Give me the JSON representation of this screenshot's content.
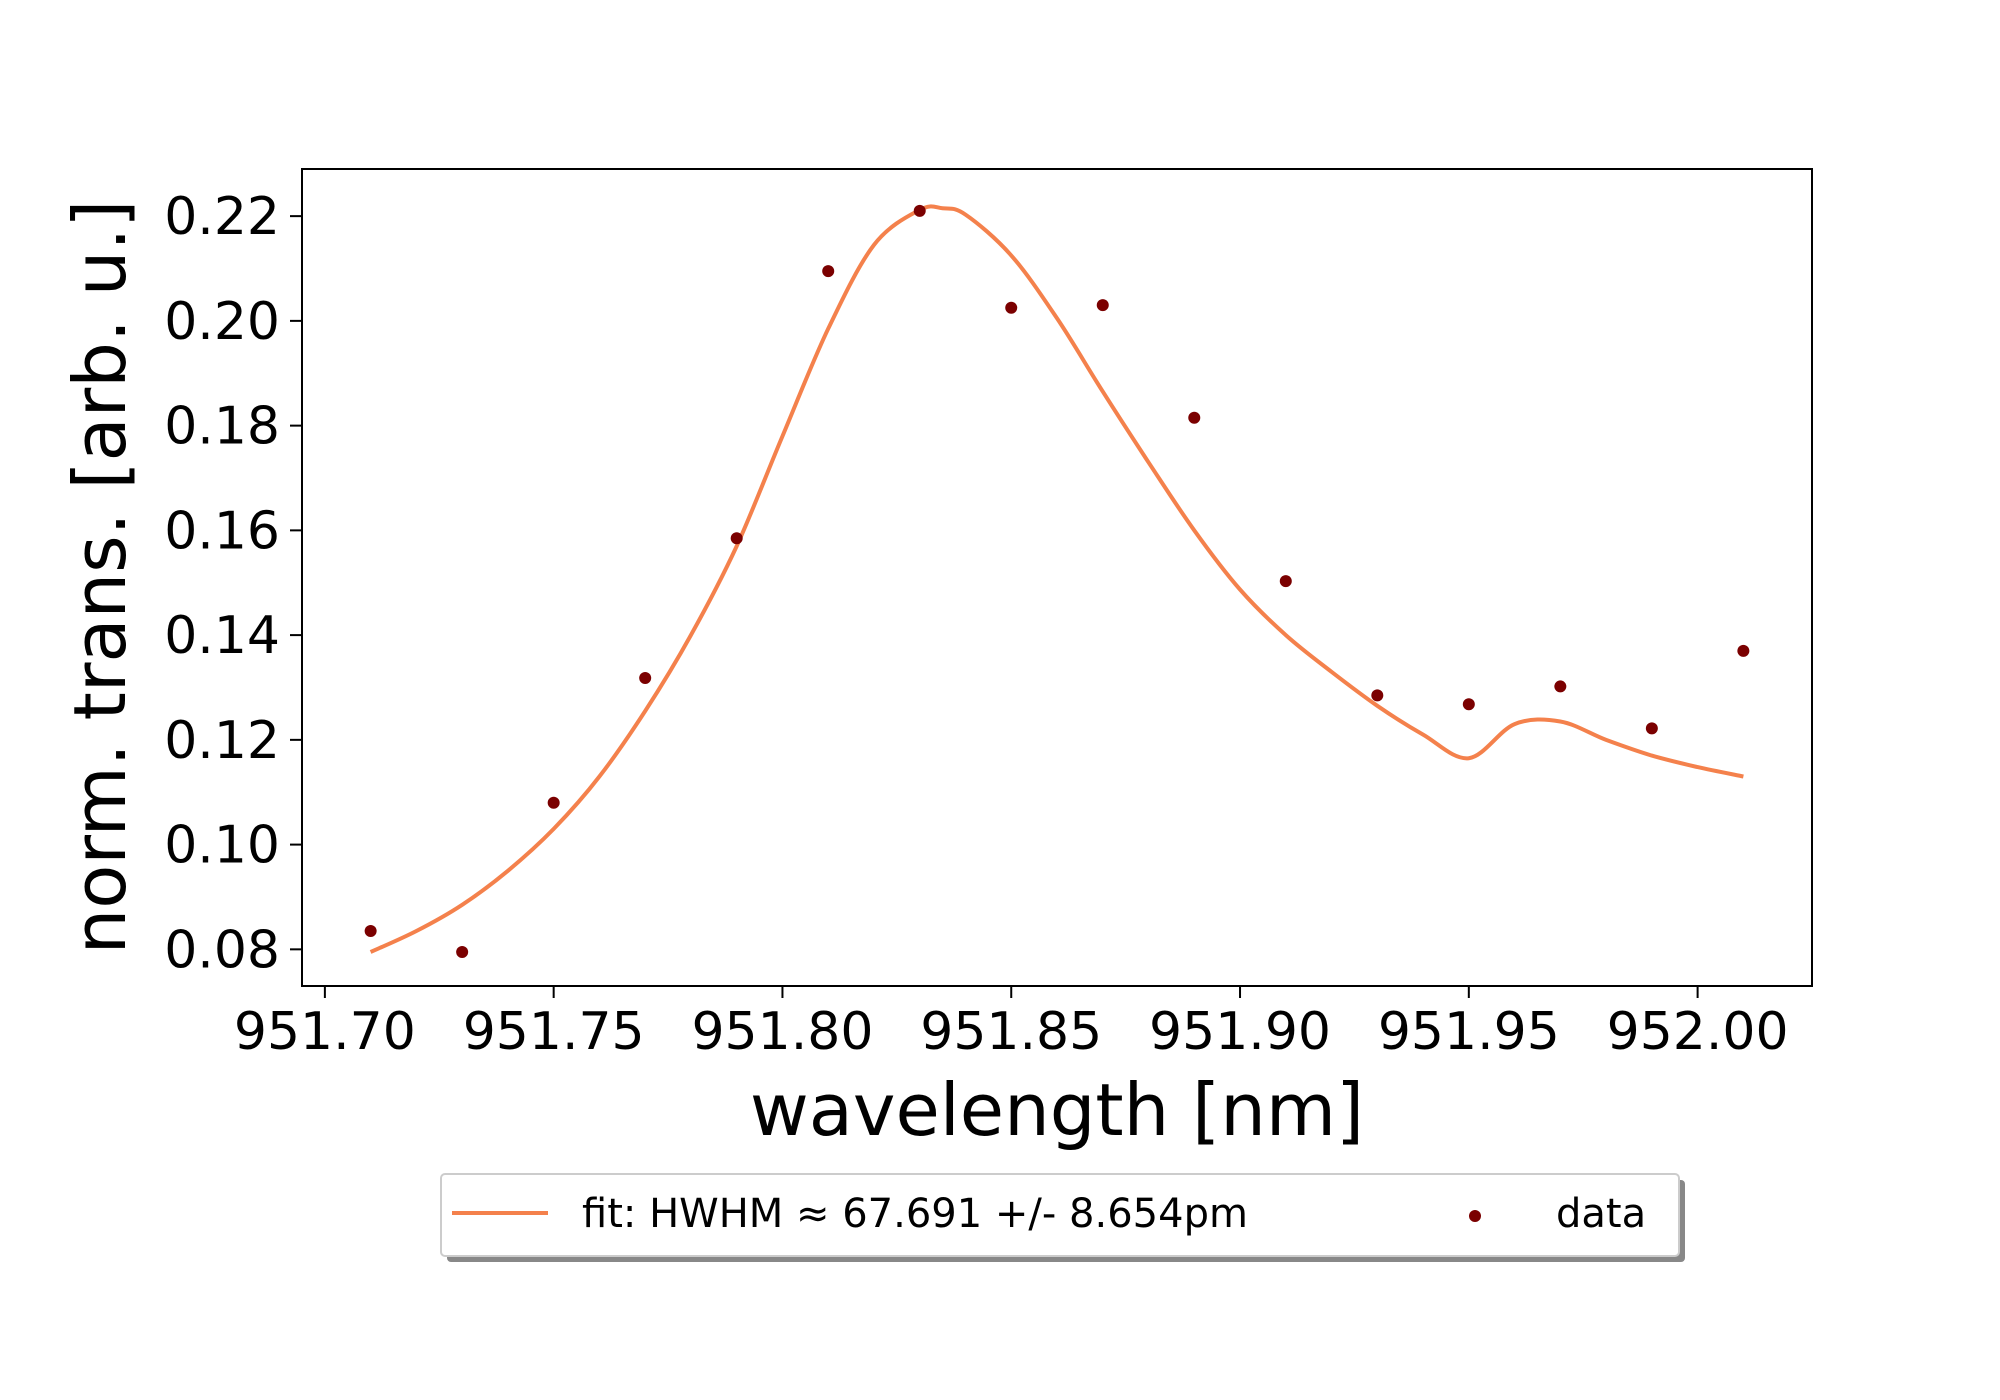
{
  "chart_data": {
    "type": "scatter",
    "title": "",
    "xlabel": "wavelength [nm]",
    "ylabel": "norm. trans. [arb. u.]",
    "xlim": [
      951.695,
      952.025
    ],
    "ylim": [
      0.073,
      0.229
    ],
    "x_ticks": [
      951.7,
      951.75,
      951.8,
      951.85,
      951.9,
      951.95,
      952.0
    ],
    "x_tick_labels": [
      "951.70",
      "951.75",
      "951.80",
      "951.85",
      "951.90",
      "951.95",
      "952.00"
    ],
    "y_ticks": [
      0.08,
      0.1,
      0.12,
      0.14,
      0.16,
      0.18,
      0.2,
      0.22
    ],
    "y_tick_labels": [
      "0.08",
      "0.10",
      "0.12",
      "0.14",
      "0.16",
      "0.18",
      "0.20",
      "0.22"
    ],
    "grid": false,
    "legend_position": "bottom-center, below plot",
    "series": [
      {
        "name": "fit: HWHM ≈ 67.691 +/- 8.654pm",
        "kind": "line",
        "color": "#f4814c",
        "x": [
          951.71,
          951.72,
          951.73,
          951.74,
          951.75,
          951.76,
          951.77,
          951.78,
          951.79,
          951.8,
          951.81,
          951.82,
          951.83,
          951.835,
          951.84,
          951.85,
          951.86,
          951.87,
          951.88,
          951.89,
          951.9,
          951.91,
          951.92,
          951.93,
          951.94,
          951.95,
          951.96,
          951.97,
          951.98,
          951.99,
          952.0,
          952.01
        ],
        "y": [
          0.0795,
          0.0835,
          0.0885,
          0.095,
          0.103,
          0.113,
          0.1255,
          0.14,
          0.157,
          0.178,
          0.1985,
          0.2145,
          0.2212,
          0.2215,
          0.2203,
          0.2125,
          0.2005,
          0.1865,
          0.173,
          0.16,
          0.1487,
          0.14,
          0.133,
          0.1265,
          0.121,
          0.1165,
          0.123,
          0.1235,
          0.12,
          0.117,
          0.1148,
          0.113
        ]
      },
      {
        "name": "data",
        "kind": "scatter",
        "color": "#7b0000",
        "x": [
          951.71,
          951.73,
          951.75,
          951.77,
          951.79,
          951.81,
          951.83,
          951.85,
          951.87,
          951.89,
          951.91,
          951.93,
          951.95,
          951.97,
          951.99,
          952.01
        ],
        "y": [
          0.0835,
          0.0795,
          0.108,
          0.1318,
          0.1585,
          0.2095,
          0.221,
          0.2025,
          0.203,
          0.1815,
          0.1503,
          0.1285,
          0.1268,
          0.1302,
          0.1222,
          0.137
        ]
      }
    ]
  }
}
